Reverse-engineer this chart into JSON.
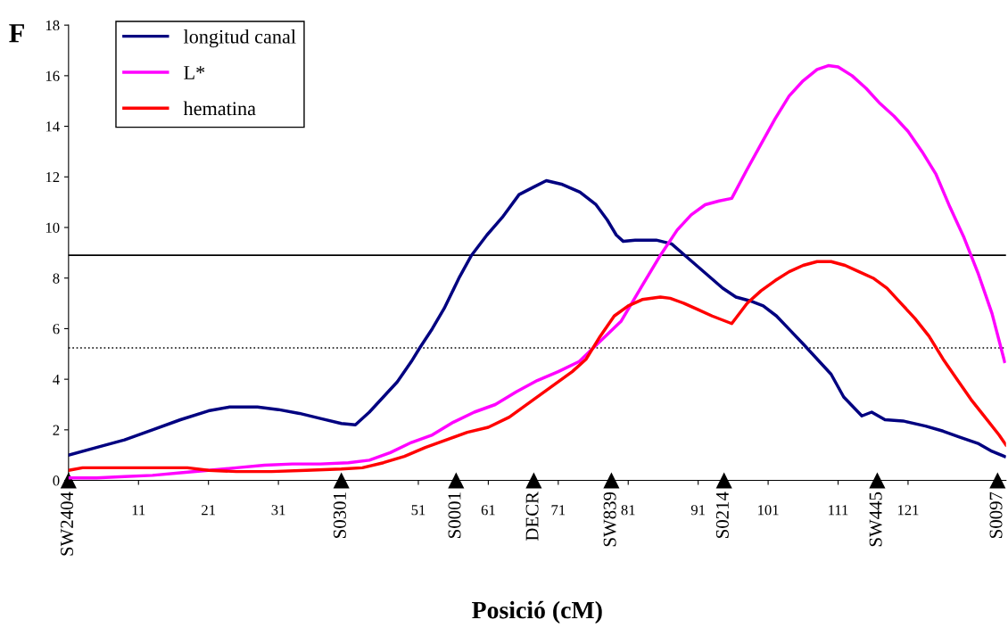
{
  "chart_data": {
    "type": "line",
    "xlabel": "Posició (cM)",
    "ylabel": "F",
    "xlim": [
      1,
      135
    ],
    "xticks": [
      11,
      21,
      31,
      51,
      61,
      71,
      81,
      91,
      101,
      111,
      121
    ],
    "ylim": [
      0,
      18
    ],
    "yticks": [
      0,
      2,
      4,
      6,
      8,
      10,
      12,
      14,
      16,
      18
    ],
    "series": [
      {
        "name": "longitud canal",
        "color": "#000080",
        "x": [
          1,
          5,
          9,
          13,
          17,
          21,
          24,
          28,
          31,
          34,
          37,
          40,
          42,
          44,
          46,
          48,
          50,
          51.2,
          53,
          54.7,
          56.9,
          58.6,
          60.8,
          63,
          65.4,
          67.5,
          69.3,
          71.6,
          74.1,
          76.4,
          78,
          79.3,
          80.3,
          82,
          85,
          87.2,
          89.5,
          92,
          94.5,
          96.4,
          98.4,
          100.3,
          102.2,
          104.1,
          106,
          108,
          110,
          111.8,
          114.4,
          115.8,
          117.7,
          120.3,
          123.5,
          126,
          128.5,
          131.1,
          133,
          134.8
        ],
        "values": [
          1.0,
          1.3,
          1.6,
          2.0,
          2.4,
          2.75,
          2.9,
          2.9,
          2.8,
          2.65,
          2.45,
          2.25,
          2.2,
          2.7,
          3.3,
          3.9,
          4.7,
          5.24,
          6.0,
          6.8,
          8.05,
          8.9,
          9.7,
          10.4,
          11.3,
          11.6,
          11.85,
          11.7,
          11.4,
          10.9,
          10.3,
          9.7,
          9.45,
          9.5,
          9.5,
          9.35,
          8.8,
          8.2,
          7.6,
          7.25,
          7.1,
          6.9,
          6.5,
          5.95,
          5.4,
          4.8,
          4.2,
          3.3,
          2.55,
          2.7,
          2.4,
          2.35,
          2.15,
          1.95,
          1.7,
          1.45,
          1.15,
          0.95
        ]
      },
      {
        "name": "L*",
        "color": "#ff00ff",
        "x": [
          1,
          5,
          9,
          13,
          17,
          21,
          25,
          29,
          33,
          37,
          41,
          44,
          47,
          50,
          53,
          56,
          59,
          62,
          65,
          68,
          71,
          74,
          77,
          80,
          83,
          85.6,
          88,
          90,
          92,
          94,
          95.8,
          98,
          100,
          102,
          104,
          106,
          108,
          109.6,
          111,
          113,
          115,
          117,
          119,
          121,
          123,
          125,
          127,
          129,
          131,
          133,
          134.8
        ],
        "values": [
          0.1,
          0.1,
          0.15,
          0.2,
          0.3,
          0.4,
          0.5,
          0.6,
          0.65,
          0.65,
          0.7,
          0.8,
          1.1,
          1.5,
          1.8,
          2.3,
          2.7,
          3.0,
          3.5,
          3.95,
          4.3,
          4.7,
          5.5,
          6.3,
          7.7,
          8.9,
          9.9,
          10.5,
          10.9,
          11.05,
          11.15,
          12.3,
          13.3,
          14.3,
          15.2,
          15.8,
          16.25,
          16.4,
          16.35,
          16.0,
          15.5,
          14.9,
          14.4,
          13.8,
          13.0,
          12.1,
          10.8,
          9.6,
          8.2,
          6.6,
          4.7
        ]
      },
      {
        "type": "scatter",
        "color": "#000000",
        "marker": "triangle",
        "x": [
          1,
          40,
          56.4,
          67.5,
          78.6,
          94.7,
          116.6,
          133.8
        ],
        "values": [
          0,
          0,
          0,
          0,
          0,
          0,
          0,
          0
        ]
      },
      {
        "name": "hematina",
        "color": "#ff0000",
        "x": [
          1,
          3,
          10,
          18,
          21,
          25,
          30,
          35,
          40,
          43,
          46,
          49,
          52,
          55,
          58,
          61,
          64,
          67,
          70,
          73,
          75,
          77,
          79,
          81,
          83,
          85.6,
          87,
          89,
          91,
          93,
          95.8,
          98,
          100,
          102,
          104,
          106,
          108,
          110,
          112,
          114,
          116,
          118,
          120,
          122,
          124,
          126,
          128,
          130,
          132,
          134,
          135
        ],
        "values": [
          0.4,
          0.5,
          0.5,
          0.5,
          0.4,
          0.35,
          0.35,
          0.4,
          0.45,
          0.5,
          0.7,
          0.95,
          1.3,
          1.6,
          1.9,
          2.1,
          2.5,
          3.1,
          3.7,
          4.3,
          4.8,
          5.7,
          6.5,
          6.9,
          7.15,
          7.25,
          7.2,
          7.0,
          6.75,
          6.5,
          6.2,
          7.0,
          7.5,
          7.9,
          8.25,
          8.5,
          8.65,
          8.65,
          8.5,
          8.25,
          8.0,
          7.6,
          7.0,
          6.4,
          5.7,
          4.8,
          4.0,
          3.2,
          2.5,
          1.8,
          1.4
        ]
      }
    ],
    "ref_lines": [
      {
        "axis": "y",
        "value": 8.9,
        "color": "#000000",
        "line_style": "solid"
      },
      {
        "axis": "y",
        "value": 5.24,
        "color": "#000000",
        "line_style": "dotted"
      }
    ],
    "annotations": [
      {
        "text": "SW2404",
        "x": 1,
        "y": 0
      },
      {
        "text": "S0301",
        "x": 40,
        "y": 0
      },
      {
        "text": "S0001",
        "x": 56.4,
        "y": 0
      },
      {
        "text": "DECR",
        "x": 67.5,
        "y": 0
      },
      {
        "text": "SW839",
        "x": 78.6,
        "y": 0
      },
      {
        "text": "S0214",
        "x": 94.7,
        "y": 0
      },
      {
        "text": "SW445",
        "x": 116.6,
        "y": 0
      },
      {
        "text": "S0097",
        "x": 133.8,
        "y": 0
      }
    ],
    "legend": "top left",
    "grid": false,
    "marker": "none",
    "line_style": "solid"
  }
}
